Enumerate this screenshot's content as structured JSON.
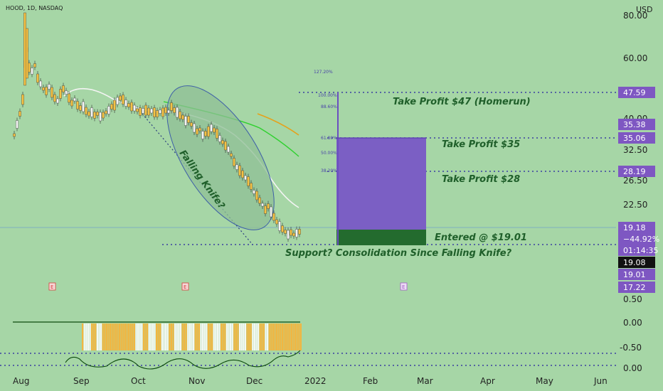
{
  "header": {
    "symbol": "HOOD, 1D, NASDAQ",
    "currency": "USD"
  },
  "chart_data": {
    "type": "candlestick",
    "symbol": "HOOD",
    "interval": "1D",
    "exchange": "NASDAQ",
    "price_axis": {
      "scale": "log",
      "ticks": [
        "80.00",
        "60.00",
        "40.00",
        "32.50",
        "26.50",
        "22.50"
      ],
      "indicator_ticks": [
        "0.50",
        "0.00",
        "-0.50",
        "0.00"
      ]
    },
    "time_axis": {
      "ticks": [
        "Aug",
        "Sep",
        "Oct",
        "Nov",
        "Dec",
        "2022",
        "Feb",
        "Mar",
        "Apr",
        "May",
        "Jun"
      ]
    },
    "price_labels": [
      {
        "text": "47.59",
        "role": "take-profit-homerun",
        "color": "#7e57c2"
      },
      {
        "text": "35.38",
        "role": "fib-level",
        "color": "#7e57c2"
      },
      {
        "text": "35.06",
        "role": "take-profit-35",
        "color": "#7e57c2"
      },
      {
        "text": "28.19",
        "role": "take-profit-28",
        "color": "#7e57c2"
      },
      {
        "text": "19.18",
        "role": "last-price",
        "color": "#7e57c2"
      },
      {
        "text": "−44.92%",
        "role": "change",
        "color": "#7e57c2"
      },
      {
        "text": "01:14:35",
        "role": "countdown",
        "color": "#7e57c2"
      },
      {
        "text": "19.08",
        "role": "crosshair",
        "color": "#111111"
      },
      {
        "text": "19.01",
        "role": "entry",
        "color": "#7e57c2"
      },
      {
        "text": "17.22",
        "role": "support",
        "color": "#7e57c2"
      }
    ],
    "fib_levels": [
      "127.20%",
      "100.00%",
      "88.60%",
      "61.80%",
      "50.00%",
      "38.20%"
    ],
    "annotations": [
      {
        "text": "Take Profit $47 (Homerun)",
        "price": 47.59
      },
      {
        "text": "Take Profit $35",
        "price": 35.06
      },
      {
        "text": "Take Profit $28",
        "price": 28.19
      },
      {
        "text": "Entered @ $19.01",
        "price": 19.01
      },
      {
        "text": "Support? Consolidation Since Falling Knife?",
        "price": 17.22
      },
      {
        "text": "Falling Knife?",
        "price": null
      }
    ],
    "earnings_markers": [
      "E",
      "E",
      "E"
    ],
    "colors": {
      "background": "#a6d6a6",
      "up": "#f6c244",
      "down": "#f5f5f5",
      "accent": "#7e57c2",
      "entry_zone": "#236b2e",
      "text": "#1f5f2a"
    }
  }
}
